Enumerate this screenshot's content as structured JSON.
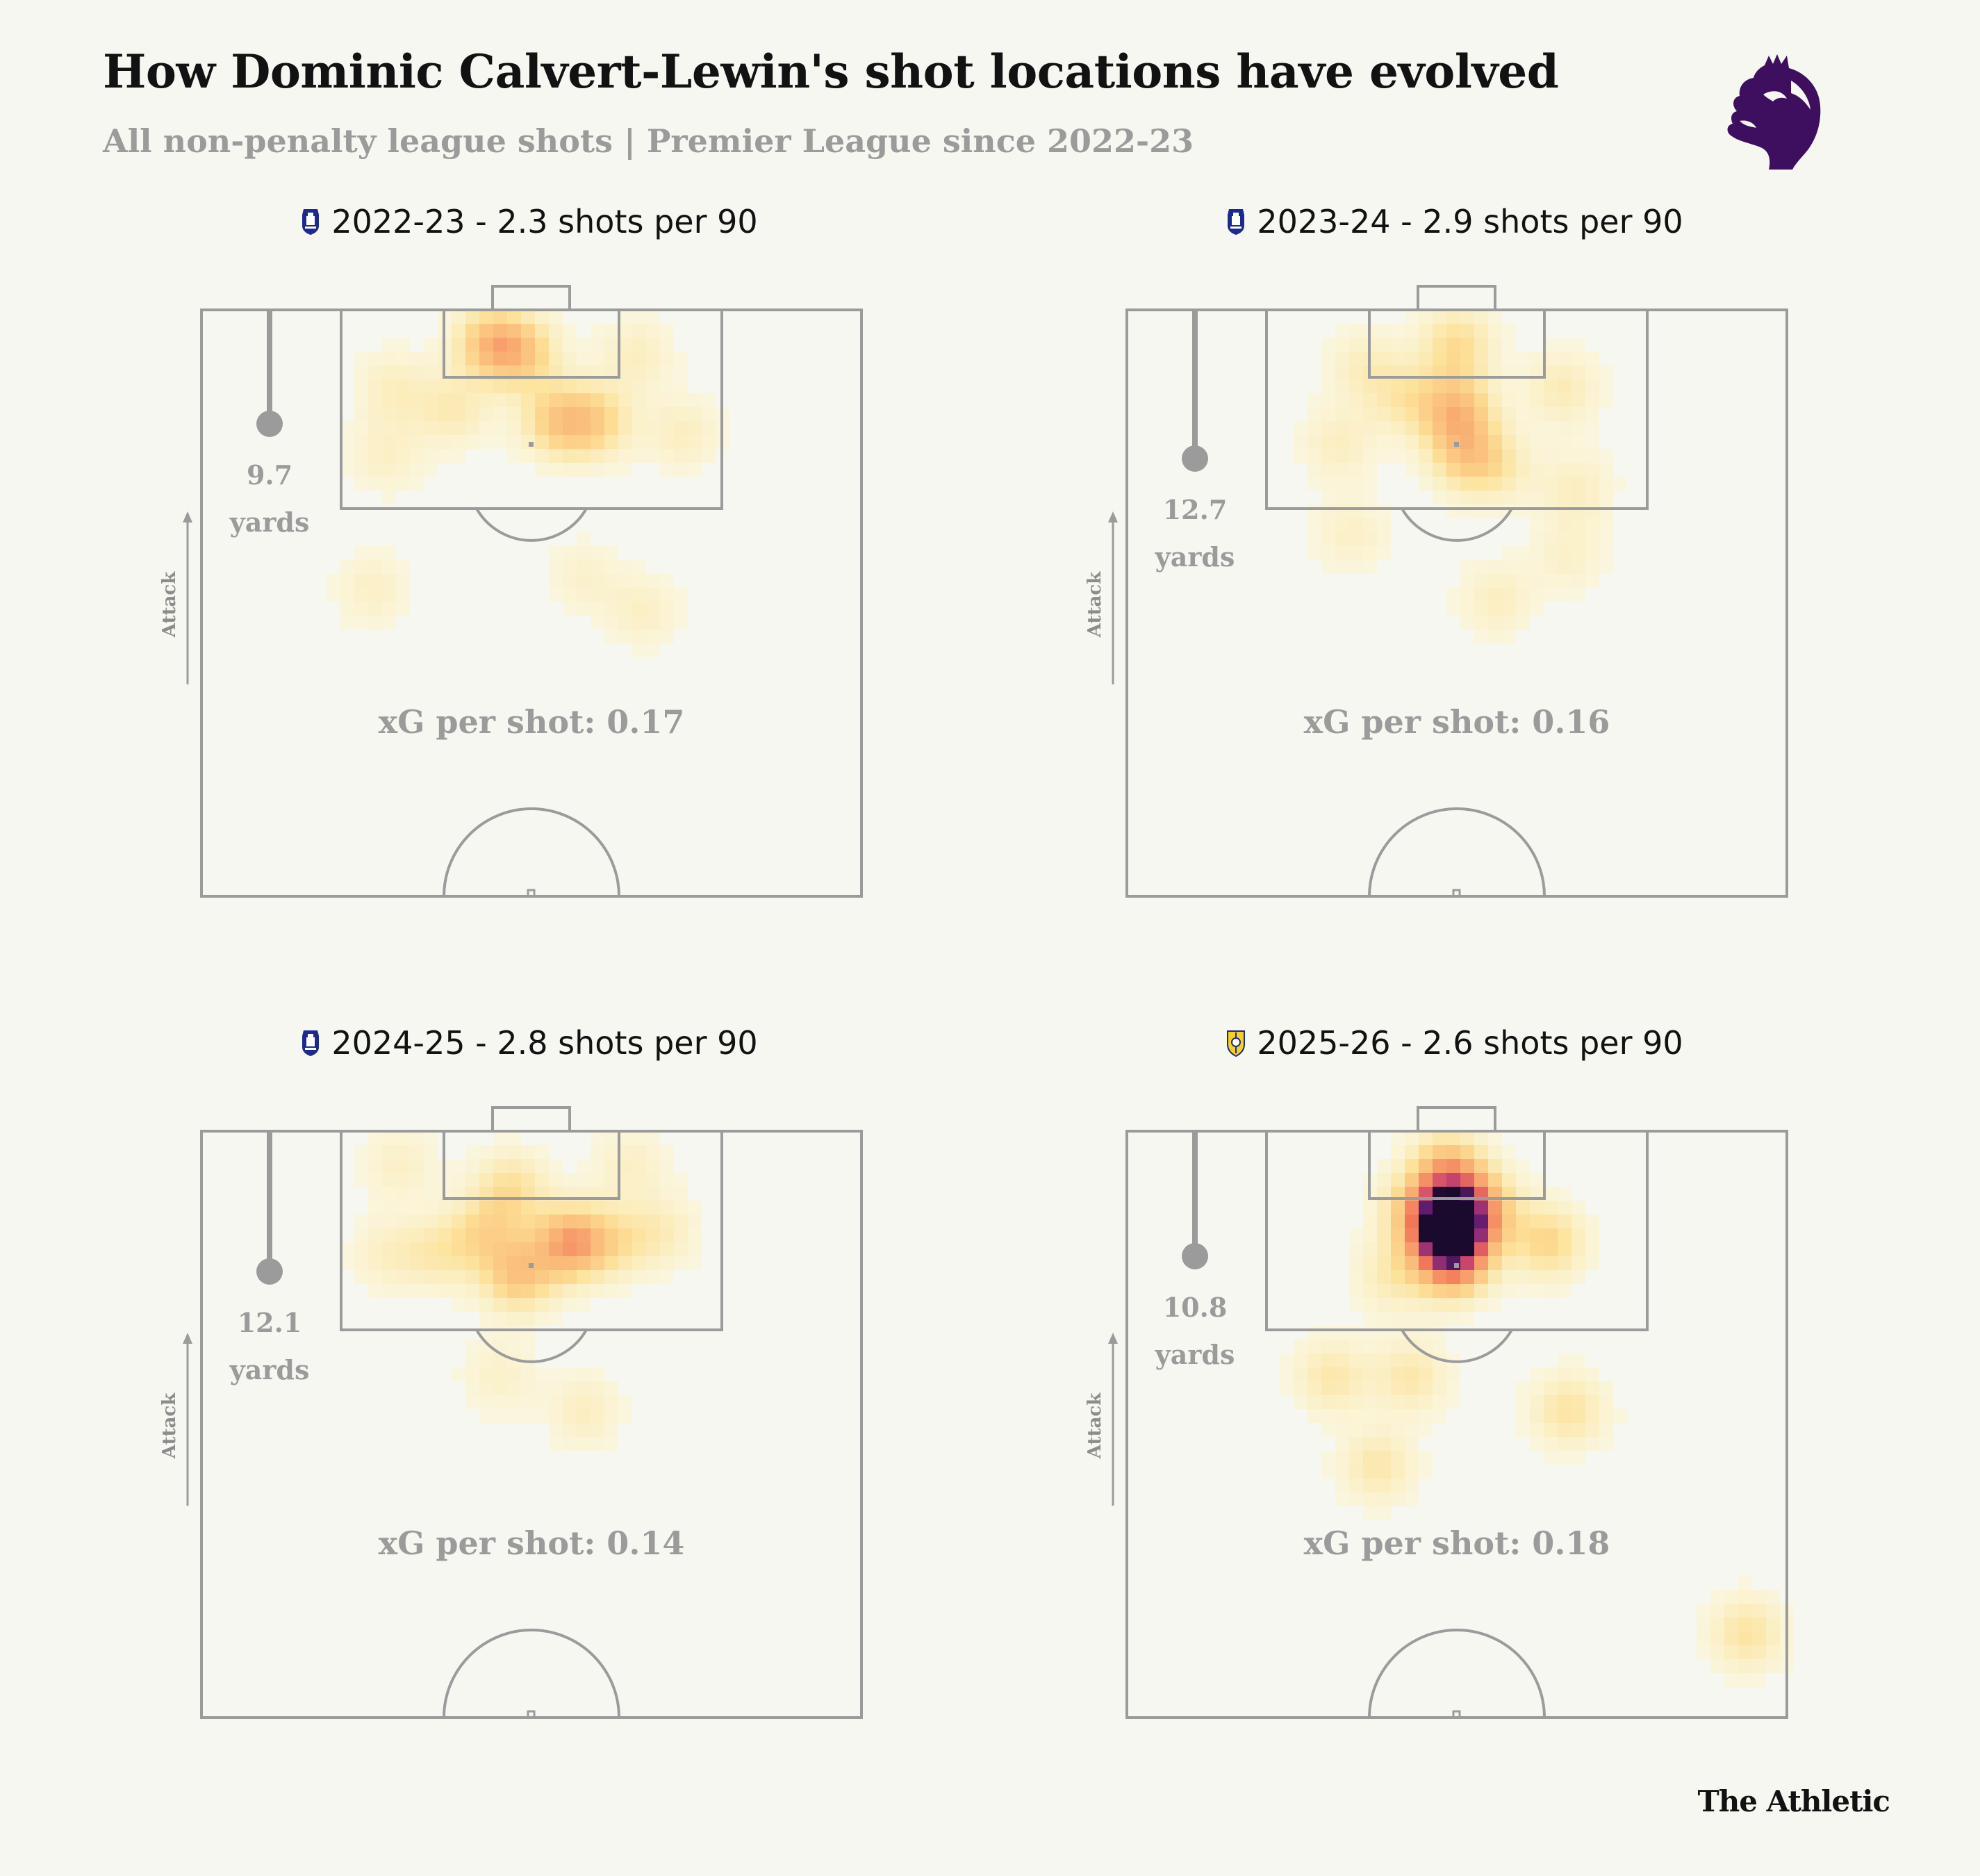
{
  "title": "How Dominic Calvert-Lewin's shot locations have evolved",
  "subtitle": "All non-penalty league shots | Premier League since 2022-23",
  "credit": "The Athletic",
  "logo_icon": "premier-league-lion-icon",
  "colors": {
    "background": "#f7f7f2",
    "pitch_lines": "#9b9b9b",
    "heat_low": "#fff6bf",
    "heat_mid": "#f2775a",
    "heat_high": "#6b1f77",
    "heat_max": "#1a0a2e",
    "everton_blue": "#1b2a8c",
    "leeds_yellow": "#f5d21f"
  },
  "chart_data": [
    {
      "type": "heatmap",
      "season": "2022-23",
      "title": "2022-23 - 2.3 shots per 90",
      "team_icon": "everton-crest-icon",
      "shots_per_90": 2.3,
      "xg_per_shot": 0.17,
      "xg_label": "xG per shot: 0.17",
      "avg_distance_yards": 9.7,
      "distance_value": "9.7",
      "distance_unit": "yards",
      "attack_label": "Attack",
      "hotspots": [
        {
          "x": 44,
          "y": 3,
          "w": 0.65
        },
        {
          "x": 49,
          "y": 4,
          "w": 0.45
        },
        {
          "x": 54,
          "y": 10,
          "w": 0.55
        },
        {
          "x": 60,
          "y": 10,
          "w": 0.45
        },
        {
          "x": 38,
          "y": 9,
          "w": 0.3
        },
        {
          "x": 29,
          "y": 7,
          "w": 0.25
        },
        {
          "x": 28,
          "y": 13,
          "w": 0.22
        },
        {
          "x": 66,
          "y": 4,
          "w": 0.25
        },
        {
          "x": 73,
          "y": 11,
          "w": 0.25
        },
        {
          "x": 26,
          "y": 25,
          "w": 0.22
        },
        {
          "x": 58,
          "y": 24,
          "w": 0.18
        },
        {
          "x": 67,
          "y": 27,
          "w": 0.22
        }
      ]
    },
    {
      "type": "heatmap",
      "season": "2023-24",
      "title": "2023-24 - 2.9 shots per 90",
      "team_icon": "everton-crest-icon",
      "shots_per_90": 2.9,
      "xg_per_shot": 0.16,
      "xg_label": "xG per shot: 0.16",
      "avg_distance_yards": 12.7,
      "distance_value": "12.7",
      "distance_unit": "yards",
      "attack_label": "Attack",
      "hotspots": [
        {
          "x": 50,
          "y": 3,
          "w": 0.45
        },
        {
          "x": 50,
          "y": 9,
          "w": 0.65
        },
        {
          "x": 51,
          "y": 13,
          "w": 0.45
        },
        {
          "x": 56,
          "y": 14,
          "w": 0.3
        },
        {
          "x": 42,
          "y": 8,
          "w": 0.3
        },
        {
          "x": 36,
          "y": 5,
          "w": 0.25
        },
        {
          "x": 32,
          "y": 12,
          "w": 0.25
        },
        {
          "x": 66,
          "y": 7,
          "w": 0.3
        },
        {
          "x": 68,
          "y": 16,
          "w": 0.25
        },
        {
          "x": 34,
          "y": 20,
          "w": 0.22
        },
        {
          "x": 56,
          "y": 26,
          "w": 0.25
        },
        {
          "x": 67,
          "y": 22,
          "w": 0.2
        }
      ]
    },
    {
      "type": "heatmap",
      "season": "2024-25",
      "title": "2024-25 - 2.8 shots per 90",
      "team_icon": "everton-crest-icon",
      "shots_per_90": 2.8,
      "xg_per_shot": 0.14,
      "xg_label": "xG per shot: 0.14",
      "avg_distance_yards": 12.1,
      "distance_value": "12.1",
      "distance_unit": "yards",
      "attack_label": "Attack",
      "hotspots": [
        {
          "x": 56,
          "y": 10,
          "w": 0.85
        },
        {
          "x": 48,
          "y": 13,
          "w": 0.6
        },
        {
          "x": 43,
          "y": 9,
          "w": 0.4
        },
        {
          "x": 47,
          "y": 5,
          "w": 0.4
        },
        {
          "x": 36,
          "y": 11,
          "w": 0.3
        },
        {
          "x": 28,
          "y": 11,
          "w": 0.22
        },
        {
          "x": 63,
          "y": 10,
          "w": 0.3
        },
        {
          "x": 70,
          "y": 9,
          "w": 0.25
        },
        {
          "x": 30,
          "y": 3,
          "w": 0.22
        },
        {
          "x": 65,
          "y": 3,
          "w": 0.22
        },
        {
          "x": 45,
          "y": 22,
          "w": 0.2
        },
        {
          "x": 58,
          "y": 25,
          "w": 0.25
        }
      ]
    },
    {
      "type": "heatmap",
      "season": "2025-26",
      "title": "2025-26 - 2.6 shots per 90",
      "team_icon": "leeds-crest-icon",
      "shots_per_90": 2.6,
      "xg_per_shot": 0.18,
      "xg_label": "xG per shot: 0.18",
      "avg_distance_yards": 10.8,
      "distance_value": "10.8",
      "distance_unit": "yards",
      "attack_label": "Attack",
      "hotspots": [
        {
          "x": 49,
          "y": 9,
          "w": 1.7
        },
        {
          "x": 49.5,
          "y": 6,
          "w": 0.75
        },
        {
          "x": 49.5,
          "y": 12,
          "w": 0.7
        },
        {
          "x": 48.5,
          "y": 3,
          "w": 0.5
        },
        {
          "x": 55,
          "y": 7,
          "w": 0.4
        },
        {
          "x": 43,
          "y": 7,
          "w": 0.35
        },
        {
          "x": 64,
          "y": 10,
          "w": 0.5
        },
        {
          "x": 40,
          "y": 13,
          "w": 0.3
        },
        {
          "x": 31,
          "y": 22,
          "w": 0.35
        },
        {
          "x": 43,
          "y": 22,
          "w": 0.35
        },
        {
          "x": 38,
          "y": 30,
          "w": 0.35
        },
        {
          "x": 67,
          "y": 25,
          "w": 0.4
        },
        {
          "x": 94,
          "y": 45,
          "w": 0.4
        }
      ]
    }
  ]
}
